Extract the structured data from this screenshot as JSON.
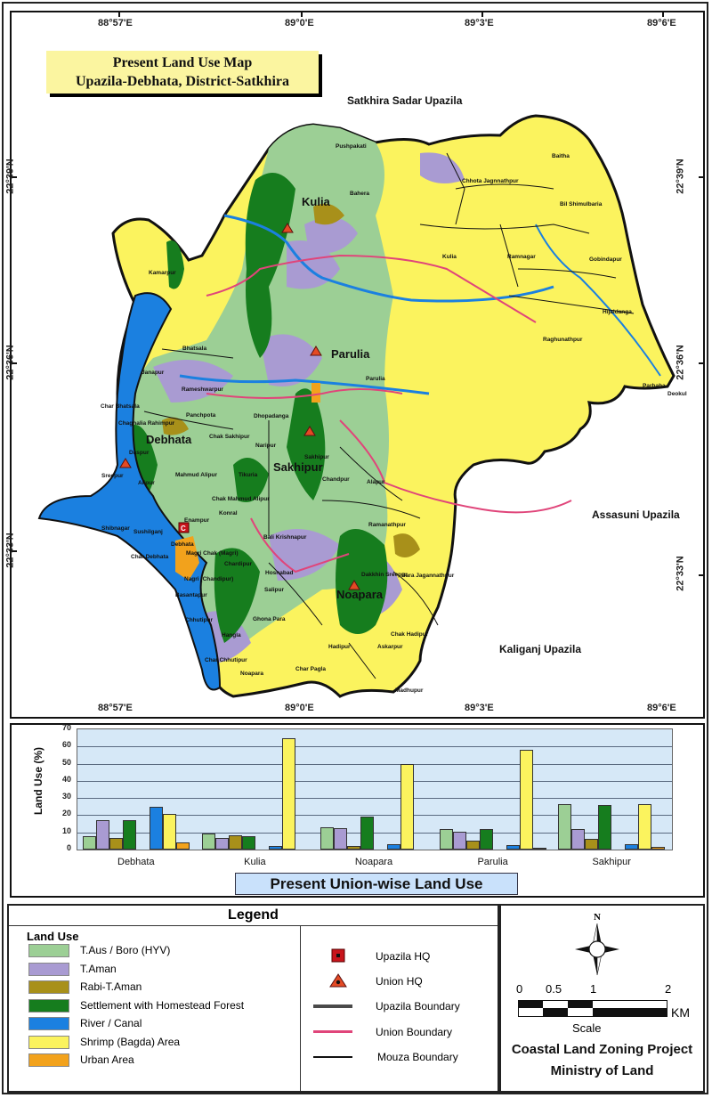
{
  "map": {
    "title_line1": "Present Land Use  Map",
    "title_line2": "Upazila-Debhata, District-Satkhira",
    "longitudes_top": [
      "88°57'E",
      "89°0'E",
      "89°3'E",
      "89°6'E"
    ],
    "longitudes_bottom": [
      "88°57'E",
      "89°0'E",
      "89°3'E",
      "89°6'E"
    ],
    "latitudes_left": [
      "22°39'N",
      "22°36'N",
      "22°33'N"
    ],
    "latitudes_right": [
      "22°39'N",
      "22°36'N",
      "22°33'N"
    ],
    "neighbors": {
      "north": "Satkhira Sadar Upazila",
      "east": "Assasuni Upazila",
      "south": "Kaliganj Upazila"
    },
    "unions": [
      "Kulia",
      "Parulia",
      "Debhata",
      "Sakhipur",
      "Noapara"
    ],
    "mouzas": [
      "Pushpakati",
      "Bahera",
      "Kamarpur",
      "Baitha",
      "Chhota Jagnnathpur",
      "Bil Shimulbaria",
      "Kulia",
      "Ramnagar",
      "Gobindapur",
      "Hijaldanga",
      "Raghunathpur",
      "Parbaha",
      "Deokul",
      "Bhatsala",
      "Janapur",
      "Rameshwarpur",
      "Char Bhatsala",
      "Chaghalia Rahimpur",
      "Panchpota",
      "Dhopadanga",
      "Chak Sakhipur",
      "Naripur",
      "Parulia",
      "Sakhipur",
      "Daspur",
      "Mahmud Alipur",
      "Tikuria",
      "Sreepur",
      "Alipur",
      "Chandpur",
      "Alapur",
      "Chak Mahmud Alipur",
      "Konral",
      "Enampur",
      "Shibnagar",
      "Sushilganj",
      "Debhata",
      "Ramanathpur",
      "Bali Krishnapur",
      "Char Debhata",
      "Magri Chak (Magri)",
      "Chardipur",
      "Hosnabad",
      "Dakkhin Sreepur",
      "Bara Jagannathpur",
      "Nagri (Chandipur)",
      "Salipur",
      "Basantapur",
      "Chhutipur",
      "Ghona Para",
      "Hadipur",
      "Chak Hadipur",
      "Askarpur",
      "Hangla",
      "Char Chhutipur",
      "Noapara",
      "Char Pagla",
      "Madhupur"
    ]
  },
  "chart_data": {
    "type": "bar",
    "title": "Present Union-wise Land Use",
    "xlabel": "",
    "ylabel": "Land Use (%)",
    "ylim": [
      0,
      70
    ],
    "yticks": [
      0,
      10,
      20,
      30,
      40,
      50,
      60,
      70
    ],
    "grid": true,
    "legend_position": "separate legend box below",
    "categories": [
      "Debhata",
      "Kulia",
      "Noapara",
      "Parulia",
      "Sakhipur"
    ],
    "series": [
      {
        "name": "T.Aus / Boro (HYV)",
        "color": "#9ccf95",
        "values": [
          8,
          9.5,
          13,
          12,
          26.5
        ]
      },
      {
        "name": "T.Aman",
        "color": "#a99bd2",
        "values": [
          17,
          7,
          12.5,
          10.5,
          12
        ]
      },
      {
        "name": "Rabi-T.Aman",
        "color": "#a8901a",
        "values": [
          7,
          8.5,
          2,
          5,
          6
        ]
      },
      {
        "name": "Settlement with Homestead Forest",
        "color": "#167d1e",
        "values": [
          17,
          8,
          19,
          12,
          26
        ]
      },
      {
        "name": "River / Canal",
        "color": "#1b80e0",
        "values": [
          25,
          2,
          3,
          2.5,
          3
        ]
      },
      {
        "name": "Shrimp (Bagda) Area",
        "color": "#fbf35e",
        "values": [
          21,
          65,
          50,
          58,
          26.5
        ]
      },
      {
        "name": "Urban Area",
        "color": "#f2a21c",
        "values": [
          4,
          0,
          0,
          0.5,
          1.5
        ]
      }
    ]
  },
  "legend": {
    "title": "Legend",
    "land_use_title": "Land Use",
    "land_use": [
      {
        "label": "T.Aus / Boro (HYV)",
        "color": "#9ccf95"
      },
      {
        "label": "T.Aman",
        "color": "#a99bd2"
      },
      {
        "label": "Rabi-T.Aman",
        "color": "#a8901a"
      },
      {
        "label": "Settlement with Homestead Forest",
        "color": "#167d1e"
      },
      {
        "label": "River / Canal",
        "color": "#1b80e0"
      },
      {
        "label": "Shrimp (Bagda) Area",
        "color": "#fbf35e"
      },
      {
        "label": "Urban Area",
        "color": "#f2a21c"
      }
    ],
    "symbols": [
      {
        "label": "Upazila HQ",
        "icon": "red-square-dot-icon"
      },
      {
        "label": "Union HQ",
        "icon": "red-triangle-dot-icon"
      },
      {
        "label": "Upazila Boundary",
        "icon": "thick-gray-line-icon",
        "color": "#4a4a4a"
      },
      {
        "label": "Union Boundary",
        "icon": "pink-line-icon",
        "color": "#e0457a"
      },
      {
        "label": "Mouza Boundary",
        "icon": "thin-black-line-icon",
        "color": "#111111"
      }
    ]
  },
  "info": {
    "north": "N",
    "scale_ticks": [
      "0",
      "0.5",
      "1",
      "2"
    ],
    "scale_unit": "KM",
    "scale_label": "Scale",
    "project_line1": "Coastal Land Zoning Project",
    "project_line2": "Ministry of Land"
  }
}
